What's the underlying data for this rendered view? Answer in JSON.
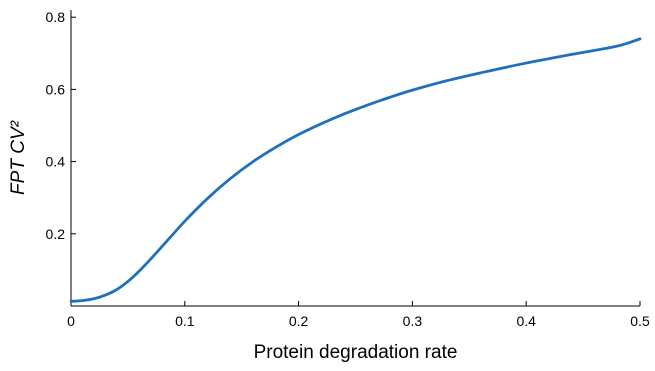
{
  "chart_data": {
    "type": "line",
    "title": "",
    "xlabel": "Protein degradation rate",
    "ylabel": "FPT CV²",
    "xlim": [
      0,
      0.5
    ],
    "ylim": [
      0,
      0.82
    ],
    "xticks": [
      0,
      0.1,
      0.2,
      0.3,
      0.4,
      0.5
    ],
    "xtick_labels": [
      "0",
      "0.1",
      "0.2",
      "0.3",
      "0.4",
      "0.5"
    ],
    "yticks": [
      0.2,
      0.4,
      0.6,
      0.8
    ],
    "ytick_labels": [
      "0.2",
      "0.4",
      "0.6",
      "0.8"
    ],
    "grid": false,
    "legend": "none",
    "series_color": "#1f6fbf",
    "series": [
      {
        "x": [
          0,
          0.01,
          0.02,
          0.03,
          0.04,
          0.05,
          0.06,
          0.07,
          0.08,
          0.09,
          0.1,
          0.12,
          0.14,
          0.16,
          0.18,
          0.2,
          0.22,
          0.24,
          0.26,
          0.28,
          0.3,
          0.33,
          0.36,
          0.4,
          0.44,
          0.48,
          0.5
        ],
        "y": [
          0.013,
          0.015,
          0.02,
          0.03,
          0.045,
          0.068,
          0.097,
          0.13,
          0.165,
          0.2,
          0.235,
          0.298,
          0.353,
          0.4,
          0.44,
          0.475,
          0.505,
          0.532,
          0.556,
          0.578,
          0.598,
          0.624,
          0.646,
          0.673,
          0.697,
          0.72,
          0.74
        ]
      }
    ]
  }
}
